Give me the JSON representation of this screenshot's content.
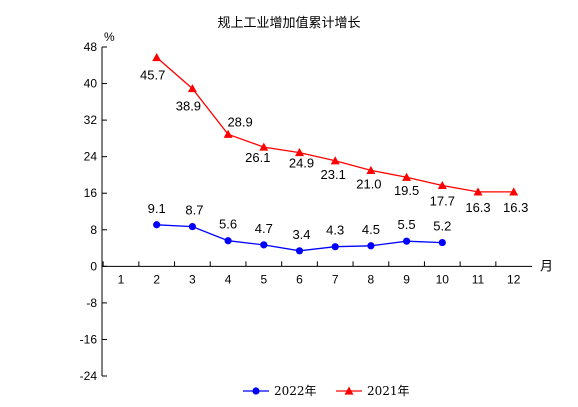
{
  "chart_data": {
    "type": "line",
    "title": "规上工业增加值累计增长",
    "ylabel": "%",
    "xlabel": "月",
    "x": [
      1,
      2,
      3,
      4,
      5,
      6,
      7,
      8,
      9,
      10,
      11,
      12
    ],
    "xlim": [
      0.5,
      12.5
    ],
    "ylim": [
      -24,
      48
    ],
    "yticks": [
      48,
      40,
      32,
      24,
      16,
      8,
      0,
      -8,
      -16,
      -24
    ],
    "grid": false,
    "legend_position": "bottom-center",
    "series": [
      {
        "name": "2022年",
        "color": "#0000ff",
        "marker": "circle",
        "x": [
          2,
          3,
          4,
          5,
          6,
          7,
          8,
          9,
          10
        ],
        "values": [
          9.1,
          8.7,
          5.6,
          4.7,
          3.4,
          4.3,
          4.5,
          5.5,
          5.2
        ],
        "labels": [
          "9.1",
          "8.7",
          "5.6",
          "4.7",
          "3.4",
          "4.3",
          "4.5",
          "5.5",
          "5.2"
        ]
      },
      {
        "name": "2021年",
        "color": "#ff0000",
        "marker": "triangle",
        "x": [
          2,
          3,
          4,
          5,
          6,
          7,
          8,
          9,
          10,
          11,
          12
        ],
        "values": [
          45.7,
          38.9,
          28.9,
          26.1,
          24.9,
          23.1,
          21.0,
          19.5,
          17.7,
          16.3,
          16.3
        ],
        "labels": [
          "45.7",
          "38.9",
          "28.9",
          "26.1",
          "24.9",
          "23.1",
          "21.0",
          "19.5",
          "17.7",
          "16.3",
          "16.3"
        ]
      }
    ]
  }
}
